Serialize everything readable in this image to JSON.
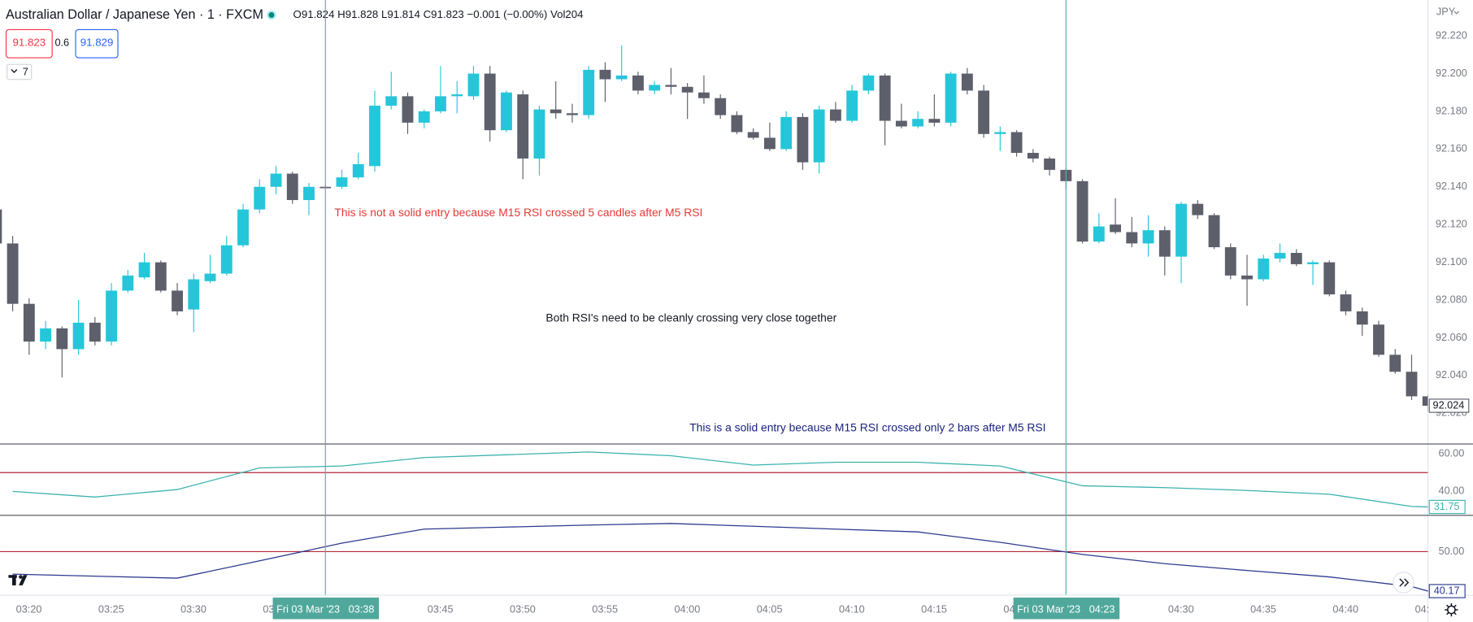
{
  "chart_data": {
    "type": "candlestick",
    "title": "Australian Dollar / Japanese Yen · 1 · FXCM",
    "ohlc_legend": "O91.824 H91.828 L91.814 C91.823 −0.001 (−0.00%) Vol204",
    "sell_price": "91.823",
    "spread": "0.6",
    "buy_price": "91.829",
    "indicators_count": "7",
    "currency": "JPY",
    "categories": [
      null,
      null,
      "03:20",
      null,
      null,
      null,
      null,
      "03:25",
      null,
      null,
      null,
      null,
      "03:30",
      null,
      null,
      null,
      null,
      "03",
      null,
      null,
      null,
      null,
      null,
      null,
      null,
      null,
      null,
      "03:45",
      null,
      null,
      null,
      null,
      "03:50",
      null,
      null,
      null,
      null,
      "03:55",
      null,
      null,
      null,
      null,
      "04:00",
      null,
      null,
      null,
      null,
      "04:05",
      null,
      null,
      null,
      null,
      "04:10",
      null,
      null,
      null,
      null,
      "04:15",
      null,
      null,
      null,
      null,
      "04",
      null,
      null,
      null,
      null,
      null,
      null,
      null,
      null,
      null,
      "04:30",
      null,
      null,
      null,
      null,
      "04:35",
      null,
      null,
      null,
      null,
      "04:40",
      null,
      null,
      null,
      null,
      "04:"
    ],
    "open": [
      92.128,
      92.11,
      92.078,
      92.058,
      92.065,
      92.054,
      92.068,
      92.058,
      92.085,
      92.092,
      92.1,
      92.085,
      92.075,
      92.09,
      92.094,
      92.109,
      92.128,
      92.14,
      92.147,
      92.133,
      92.14,
      92.14,
      92.145,
      92.151,
      92.183,
      92.188,
      92.174,
      92.18,
      92.188,
      92.188,
      92.2,
      92.17,
      92.189,
      92.155,
      92.181,
      92.179,
      92.178,
      92.202,
      92.197,
      92.199,
      92.191,
      92.194,
      92.193,
      92.19,
      92.187,
      92.178,
      92.169,
      92.166,
      92.16,
      92.177,
      92.153,
      92.181,
      92.175,
      92.191,
      92.199,
      92.175,
      92.172,
      92.176,
      92.174,
      92.2,
      92.191,
      92.168,
      92.169,
      92.158,
      92.155,
      92.149,
      92.143,
      92.111,
      92.12,
      92.116,
      92.11,
      92.117,
      92.103,
      92.131,
      92.125,
      92.108,
      92.093,
      92.091,
      92.102,
      92.105,
      92.099,
      92.1,
      92.083,
      92.074,
      92.067,
      92.051,
      92.042,
      92.029
    ],
    "high": [
      92.131,
      92.114,
      92.081,
      92.069,
      92.066,
      92.08,
      92.071,
      92.089,
      92.096,
      92.105,
      92.101,
      92.089,
      92.094,
      92.104,
      92.114,
      92.131,
      92.144,
      92.151,
      92.148,
      92.142,
      92.141,
      92.149,
      92.158,
      92.191,
      92.201,
      92.19,
      92.181,
      92.204,
      92.196,
      92.204,
      92.204,
      92.191,
      92.191,
      92.183,
      92.196,
      92.184,
      92.204,
      92.206,
      92.215,
      92.201,
      92.196,
      92.203,
      92.195,
      92.199,
      92.189,
      92.18,
      92.171,
      92.174,
      92.18,
      92.179,
      92.183,
      92.185,
      92.194,
      92.2,
      92.2,
      92.184,
      92.18,
      92.189,
      92.201,
      92.203,
      92.194,
      92.172,
      92.17,
      92.16,
      92.156,
      92.15,
      92.144,
      92.126,
      92.134,
      92.124,
      92.125,
      92.119,
      92.132,
      92.133,
      92.126,
      92.11,
      92.104,
      92.104,
      92.11,
      92.107,
      92.101,
      92.101,
      92.085,
      92.076,
      92.069,
      92.054,
      92.051,
      92.03
    ],
    "low": [
      92.108,
      92.074,
      92.051,
      92.054,
      92.039,
      92.051,
      92.056,
      92.056,
      92.084,
      92.091,
      92.084,
      92.072,
      92.063,
      92.089,
      92.093,
      92.108,
      92.126,
      92.136,
      92.131,
      92.125,
      92.139,
      92.139,
      92.144,
      92.148,
      92.181,
      92.168,
      92.171,
      92.179,
      92.179,
      92.186,
      92.164,
      92.169,
      92.144,
      92.146,
      92.176,
      92.174,
      92.176,
      92.185,
      92.196,
      92.189,
      92.189,
      92.189,
      92.176,
      92.184,
      92.176,
      92.168,
      92.165,
      92.159,
      92.159,
      92.149,
      92.147,
      92.174,
      92.174,
      92.189,
      92.162,
      92.171,
      92.171,
      92.172,
      92.172,
      92.189,
      92.166,
      92.159,
      92.156,
      92.153,
      92.146,
      92.139,
      92.11,
      92.11,
      92.115,
      92.108,
      92.103,
      92.093,
      92.089,
      92.123,
      92.107,
      92.091,
      92.077,
      92.09,
      92.1,
      92.098,
      92.088,
      92.082,
      92.072,
      92.061,
      92.05,
      92.041,
      92.027,
      92.021
    ],
    "close": [
      92.11,
      92.078,
      92.058,
      92.065,
      92.054,
      92.068,
      92.058,
      92.085,
      92.093,
      92.1,
      92.085,
      92.074,
      92.091,
      92.094,
      92.109,
      92.128,
      92.14,
      92.147,
      92.133,
      92.14,
      92.14,
      92.145,
      92.152,
      92.183,
      92.188,
      92.174,
      92.18,
      92.188,
      92.189,
      92.2,
      92.17,
      92.19,
      92.155,
      92.181,
      92.179,
      92.178,
      92.202,
      92.197,
      92.199,
      92.191,
      92.194,
      92.193,
      92.19,
      92.187,
      92.178,
      92.169,
      92.166,
      92.16,
      92.177,
      92.153,
      92.181,
      92.175,
      92.191,
      92.199,
      92.175,
      92.172,
      92.176,
      92.174,
      92.2,
      92.191,
      92.168,
      92.169,
      92.158,
      92.155,
      92.149,
      92.143,
      92.111,
      92.119,
      92.116,
      92.11,
      92.117,
      92.103,
      92.131,
      92.125,
      92.108,
      92.093,
      92.091,
      92.102,
      92.105,
      92.099,
      92.1,
      92.083,
      92.074,
      92.067,
      92.051,
      92.042,
      92.029,
      92.024
    ],
    "up_color": "#26c6da",
    "down_color": "#5d606b",
    "ylim": [
      92.004,
      92.239
    ],
    "yticks": [
      {
        "value": 92.02,
        "label": "92.020"
      },
      {
        "value": 92.04,
        "label": "92.040"
      },
      {
        "value": 92.06,
        "label": "92.060"
      },
      {
        "value": 92.08,
        "label": "92.080"
      },
      {
        "value": 92.1,
        "label": "92.100"
      },
      {
        "value": 92.12,
        "label": "92.120"
      },
      {
        "value": 92.14,
        "label": "92.140"
      },
      {
        "value": 92.16,
        "label": "92.160"
      },
      {
        "value": 92.18,
        "label": "92.180"
      },
      {
        "value": 92.2,
        "label": "92.200"
      },
      {
        "value": 92.22,
        "label": "92.220"
      }
    ],
    "annotations": [
      {
        "text": "This is not a solid entry because M15 RSI crossed 5 candles after M5 RSI",
        "color": "#e53935"
      },
      {
        "text": "Both RSI's need to be cleanly crossing very close together",
        "color": "#131722"
      },
      {
        "text": "This is a solid entry because M15 RSI crossed only 2 bars after M5 RSI",
        "color": "#1a237e"
      }
    ],
    "crosshair_labels": [
      "Fri 03 Mar '23   03:38",
      "Fri 03 Mar '23   04:23"
    ],
    "panes": [
      {
        "type": "line",
        "color": "#3bb3b0",
        "values": [
          40,
          37,
          41,
          52.5,
          53.5,
          58,
          59.5,
          61,
          59,
          54,
          55.5,
          55.5,
          53.5,
          43,
          42,
          40.5,
          38.5,
          32,
          31.75
        ],
        "ylim": [
          27.5,
          65
        ],
        "yticks": [
          {
            "value": 40,
            "label": "40.00"
          },
          {
            "value": 60,
            "label": "60.00"
          }
        ],
        "level": 50,
        "level_color": "#b2283a"
      },
      {
        "type": "line",
        "color": "#2b3a8f",
        "values": [
          44.4,
          43.9,
          43.4,
          47.7,
          52.1,
          55.6,
          56.1,
          56.6,
          57,
          56.3,
          55.6,
          54.9,
          52.3,
          49.3,
          47,
          45.3,
          43.7,
          41.3,
          40.17
        ],
        "ylim": [
          39.5,
          58.9
        ],
        "yticks": [
          {
            "value": 50,
            "label": "50.00"
          }
        ],
        "level": 50,
        "level_color": "#b2283a"
      }
    ]
  }
}
